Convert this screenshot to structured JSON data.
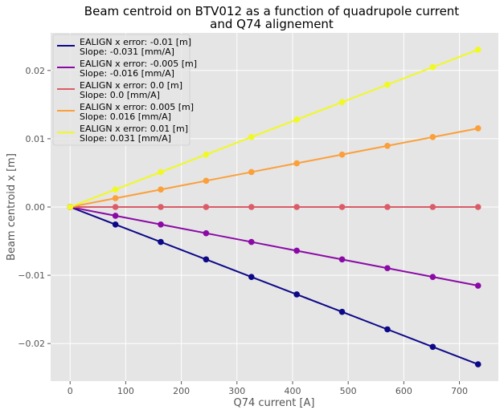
{
  "chart_data": {
    "type": "line",
    "title_lines": [
      "Beam centroid on BTV012 as a function of quadrupole current",
      "and Q74 alignement"
    ],
    "xlabel": "Q74 current [A]",
    "ylabel": "Beam centroid x [m]",
    "xlim": [
      -35,
      770
    ],
    "ylim": [
      -0.0255,
      0.0255
    ],
    "xticks": [
      0,
      100,
      200,
      300,
      400,
      500,
      600,
      700
    ],
    "yticks": [
      -0.02,
      -0.01,
      0.0,
      0.01,
      0.02
    ],
    "ytick_labels": [
      "−0.02",
      "−0.01",
      "0.00",
      "0.01",
      "0.02"
    ],
    "grid": true,
    "legend_position": "top-left",
    "x": [
      0,
      81.5,
      163,
      244.5,
      326,
      407.5,
      489,
      570.5,
      652,
      733.5
    ],
    "series": [
      {
        "legend_line1": "EALIGN x error: -0.01 [m]",
        "legend_line2": "Slope: -0.031 [mm/A]",
        "color": "#0d0887",
        "values": [
          0,
          -0.00256,
          -0.00512,
          -0.00768,
          -0.01024,
          -0.0128,
          -0.01536,
          -0.01792,
          -0.02048,
          -0.02304
        ]
      },
      {
        "legend_line1": "EALIGN x error: -0.005 [m]",
        "legend_line2": "Slope: -0.016 [mm/A]",
        "color": "#8b0aa5",
        "values": [
          0,
          -0.00128,
          -0.00256,
          -0.00384,
          -0.00512,
          -0.0064,
          -0.00768,
          -0.00896,
          -0.01024,
          -0.01152
        ]
      },
      {
        "legend_line1": "EALIGN x error: 0.0 [m]",
        "legend_line2": "Slope: 0.0 [mm/A]",
        "color": "#db5c68",
        "values": [
          0,
          0,
          0,
          0,
          0,
          0,
          0,
          0,
          0,
          0
        ]
      },
      {
        "legend_line1": "EALIGN x error: 0.005 [m]",
        "legend_line2": "Slope: 0.016 [mm/A]",
        "color": "#fb9f3a",
        "values": [
          0,
          0.00128,
          0.00256,
          0.00384,
          0.00512,
          0.0064,
          0.00768,
          0.00896,
          0.01024,
          0.01152
        ]
      },
      {
        "legend_line1": "EALIGN x error: 0.01 [m]",
        "legend_line2": "Slope: 0.031 [mm/A]",
        "color": "#f0f921",
        "values": [
          0,
          0.00256,
          0.00512,
          0.00768,
          0.01024,
          0.0128,
          0.01536,
          0.01792,
          0.02048,
          0.02304
        ]
      }
    ]
  }
}
